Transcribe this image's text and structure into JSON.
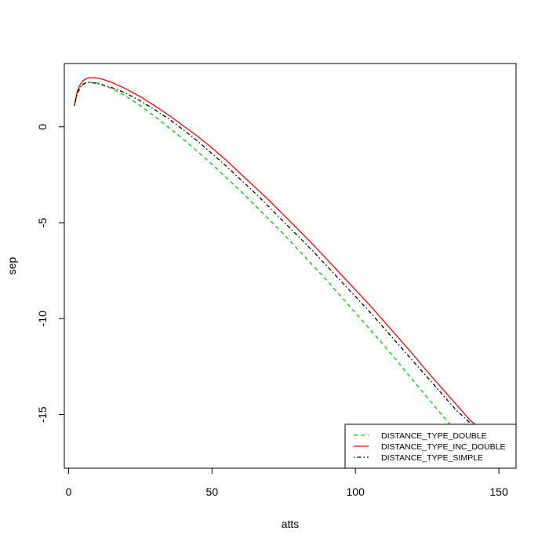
{
  "chart_data": {
    "type": "line",
    "title": "",
    "xlabel": "atts",
    "ylabel": "sep",
    "xlim": [
      -1.5,
      156
    ],
    "ylim": [
      -17.8,
      3.3
    ],
    "x_ticks": [
      0,
      50,
      100,
      150
    ],
    "x_tick_labels": [
      "0",
      "50",
      "100",
      "150"
    ],
    "y_ticks": [
      0,
      -5,
      -10,
      -15
    ],
    "y_tick_labels": [
      "0",
      "-5",
      "-10",
      "-15"
    ],
    "grid": false,
    "legend": {
      "position": "bottom-right",
      "entries": [
        "DISTANCE_TYPE_DOUBLE",
        "DISTANCE_TYPE_INC_DOUBLE",
        "DISTANCE_TYPE_SIMPLE"
      ]
    },
    "series": [
      {
        "name": "DISTANCE_TYPE_DOUBLE",
        "color": "#00cc00",
        "dash": "dashed",
        "x": [
          2,
          3,
          4,
          5,
          6,
          7,
          8,
          9,
          10,
          12,
          15,
          20,
          25,
          30,
          35,
          40,
          45,
          50,
          55,
          60,
          65,
          70,
          75,
          80,
          85,
          90,
          95,
          100,
          105,
          110,
          115,
          120,
          125,
          130,
          135,
          140,
          145,
          150
        ],
        "y": [
          1.1,
          1.7,
          2.0,
          2.2,
          2.28,
          2.32,
          2.33,
          2.32,
          2.28,
          2.18,
          2.0,
          1.6,
          1.1,
          0.55,
          -0.05,
          -0.65,
          -1.3,
          -1.95,
          -2.65,
          -3.35,
          -4.1,
          -4.85,
          -5.6,
          -6.4,
          -7.2,
          -8.0,
          -8.85,
          -9.7,
          -10.55,
          -11.4,
          -12.3,
          -13.2,
          -14.1,
          -15.0,
          -15.85,
          -16.45,
          -16.95,
          -17.3
        ]
      },
      {
        "name": "DISTANCE_TYPE_INC_DOUBLE",
        "color": "#ff0000",
        "dash": "solid",
        "x": [
          2,
          3,
          4,
          5,
          6,
          7,
          8,
          9,
          10,
          12,
          15,
          20,
          25,
          30,
          35,
          40,
          45,
          50,
          55,
          60,
          65,
          70,
          75,
          80,
          85,
          90,
          95,
          100,
          105,
          110,
          115,
          120,
          125,
          130,
          135,
          140,
          145,
          150
        ],
        "y": [
          1.1,
          1.85,
          2.2,
          2.4,
          2.5,
          2.55,
          2.56,
          2.56,
          2.54,
          2.47,
          2.32,
          1.98,
          1.57,
          1.1,
          0.6,
          0.05,
          -0.5,
          -1.1,
          -1.75,
          -2.45,
          -3.15,
          -3.85,
          -4.6,
          -5.35,
          -6.1,
          -6.9,
          -7.7,
          -8.5,
          -9.3,
          -10.15,
          -11.0,
          -11.85,
          -12.75,
          -13.6,
          -14.45,
          -15.3,
          -15.95,
          -16.35
        ]
      },
      {
        "name": "DISTANCE_TYPE_SIMPLE",
        "color": "#000000",
        "dash": "dotdash",
        "x": [
          2,
          3,
          4,
          5,
          6,
          7,
          8,
          9,
          10,
          12,
          15,
          20,
          25,
          30,
          35,
          40,
          45,
          50,
          55,
          60,
          65,
          70,
          75,
          80,
          85,
          90,
          95,
          100,
          105,
          110,
          115,
          120,
          125,
          130,
          135,
          140,
          145,
          147
        ],
        "y": [
          1.1,
          1.75,
          2.05,
          2.22,
          2.3,
          2.32,
          2.3,
          2.28,
          2.25,
          2.18,
          2.05,
          1.75,
          1.35,
          0.9,
          0.4,
          -0.15,
          -0.75,
          -1.4,
          -2.05,
          -2.75,
          -3.45,
          -4.2,
          -4.95,
          -5.7,
          -6.45,
          -7.25,
          -8.05,
          -8.85,
          -9.65,
          -10.5,
          -11.35,
          -12.2,
          -13.05,
          -13.9,
          -14.75,
          -15.45,
          -15.95,
          -16.1
        ]
      }
    ]
  }
}
